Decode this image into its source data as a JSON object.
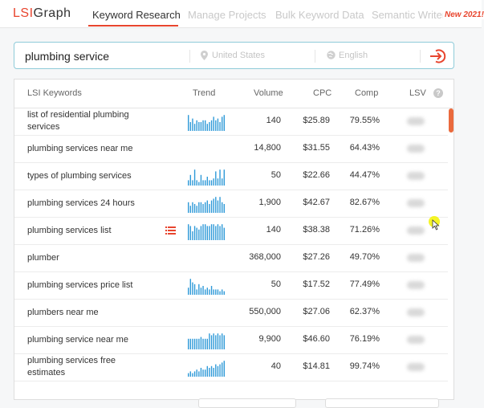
{
  "app": {
    "logo_brand": "LSI",
    "logo_rest": "Graph",
    "nav": [
      {
        "label": "Keyword Research",
        "active": true
      },
      {
        "label": "Manage Projects",
        "active": false
      },
      {
        "label": "Bulk Keyword Data",
        "active": false
      },
      {
        "label": "Semantic Writer",
        "active": false
      }
    ],
    "new_badge": "New 2021!"
  },
  "search": {
    "query": "plumbing service",
    "location_placeholder": "United States",
    "language_placeholder": "English"
  },
  "table": {
    "headers": {
      "keywords": "LSI Keywords",
      "trend": "Trend",
      "volume": "Volume",
      "cpc": "CPC",
      "comp": "Comp",
      "lsv": "LSV"
    },
    "rows": [
      {
        "keyword": "list of residential plumbing services",
        "volume": "140",
        "cpc": "$25.89",
        "comp": "79.55%",
        "trend": [
          0.9,
          0.5,
          0.7,
          0.4,
          0.6,
          0.5,
          0.5,
          0.6,
          0.6,
          0.4,
          0.5,
          0.6,
          0.8,
          0.6,
          0.7,
          0.5,
          0.8,
          0.9
        ]
      },
      {
        "keyword": "plumbing services near me",
        "volume": "14,800",
        "cpc": "$31.55",
        "comp": "64.43%",
        "trend": []
      },
      {
        "keyword": "types of plumbing services",
        "volume": "50",
        "cpc": "$22.66",
        "comp": "44.47%",
        "trend": [
          0.3,
          0.6,
          0.3,
          0.9,
          0.3,
          0.2,
          0.6,
          0.3,
          0.3,
          0.5,
          0.3,
          0.3,
          0.4,
          0.8,
          0.4,
          0.9,
          0.4,
          0.9
        ]
      },
      {
        "keyword": "plumbing services 24 hours",
        "volume": "1,900",
        "cpc": "$42.67",
        "comp": "82.67%",
        "trend": [
          0.6,
          0.4,
          0.6,
          0.5,
          0.4,
          0.6,
          0.6,
          0.5,
          0.6,
          0.7,
          0.5,
          0.7,
          0.8,
          0.9,
          0.7,
          0.9,
          0.6,
          0.5
        ]
      },
      {
        "keyword": "plumbing services list",
        "volume": "140",
        "cpc": "$38.38",
        "comp": "71.26%",
        "trend": [
          0.9,
          0.8,
          0.5,
          0.8,
          0.7,
          0.6,
          0.8,
          0.9,
          0.9,
          0.8,
          0.8,
          0.9,
          0.9,
          0.8,
          0.9,
          0.8,
          0.9,
          0.7
        ],
        "list_icon": true
      },
      {
        "keyword": "plumber",
        "volume": "368,000",
        "cpc": "$27.26",
        "comp": "49.70%",
        "trend": []
      },
      {
        "keyword": "plumbing services price list",
        "volume": "50",
        "cpc": "$17.52",
        "comp": "77.49%",
        "trend": [
          0.4,
          0.9,
          0.7,
          0.6,
          0.3,
          0.6,
          0.4,
          0.5,
          0.3,
          0.4,
          0.3,
          0.5,
          0.3,
          0.3,
          0.3,
          0.2,
          0.3,
          0.2
        ]
      },
      {
        "keyword": "plumbers near me",
        "volume": "550,000",
        "cpc": "$27.06",
        "comp": "62.37%",
        "trend": []
      },
      {
        "keyword": "plumbing service near me",
        "volume": "9,900",
        "cpc": "$46.60",
        "comp": "76.19%",
        "trend": [
          0.6,
          0.6,
          0.6,
          0.6,
          0.6,
          0.6,
          0.7,
          0.6,
          0.6,
          0.6,
          0.9,
          0.8,
          0.9,
          0.8,
          0.9,
          0.8,
          0.9,
          0.8
        ]
      },
      {
        "keyword": "plumbing services free estimates",
        "volume": "40",
        "cpc": "$14.81",
        "comp": "99.74%",
        "trend": [
          0.2,
          0.3,
          0.2,
          0.3,
          0.4,
          0.3,
          0.5,
          0.4,
          0.4,
          0.6,
          0.5,
          0.6,
          0.5,
          0.7,
          0.6,
          0.7,
          0.8,
          0.9
        ]
      }
    ]
  },
  "colors": {
    "accent": "#e8452e",
    "trend_bar": "#2f9ad8",
    "search_border": "#8fcbd9"
  }
}
